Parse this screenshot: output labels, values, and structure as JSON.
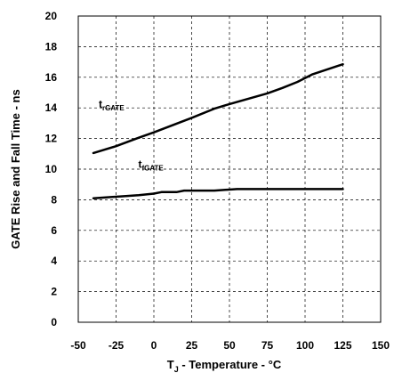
{
  "chart_data": {
    "type": "line",
    "title": "",
    "xlabel": {
      "main": "T",
      "sub": "J",
      "rest": " - Temperature - °C"
    },
    "ylabel": "GATE Rise and Fall Time - ns",
    "xlim": [
      -50,
      150
    ],
    "ylim": [
      0,
      20
    ],
    "x_ticks": [
      -50,
      -25,
      0,
      25,
      50,
      75,
      100,
      125,
      150
    ],
    "y_ticks": [
      0,
      2,
      4,
      6,
      8,
      10,
      12,
      14,
      16,
      18,
      20
    ],
    "grid": "dashed",
    "legend": "none",
    "series": [
      {
        "label": {
          "main": "t",
          "sub": "rGATE"
        },
        "color": "#000000",
        "points": [
          [
            -40,
            11.05
          ],
          [
            -25,
            11.5
          ],
          [
            -10,
            12.05
          ],
          [
            0,
            12.4
          ],
          [
            25,
            13.35
          ],
          [
            40,
            13.95
          ],
          [
            50,
            14.25
          ],
          [
            75,
            14.95
          ],
          [
            85,
            15.3
          ],
          [
            95,
            15.7
          ],
          [
            105,
            16.2
          ],
          [
            125,
            16.85
          ]
        ]
      },
      {
        "label": {
          "main": "t",
          "sub": "fGATE"
        },
        "color": "#000000",
        "points": [
          [
            -40,
            8.1
          ],
          [
            -25,
            8.2
          ],
          [
            -10,
            8.3
          ],
          [
            0,
            8.4
          ],
          [
            5,
            8.5
          ],
          [
            15,
            8.5
          ],
          [
            20,
            8.6
          ],
          [
            40,
            8.6
          ],
          [
            55,
            8.7
          ],
          [
            75,
            8.7
          ],
          [
            100,
            8.7
          ],
          [
            125,
            8.7
          ]
        ]
      }
    ]
  }
}
